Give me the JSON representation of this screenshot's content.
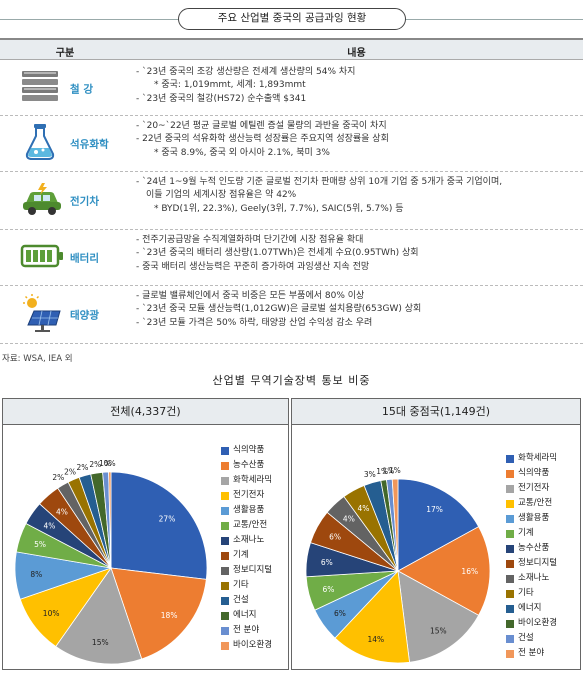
{
  "header": {
    "title": "주요 산업별 중국의 공급과잉 현황"
  },
  "table": {
    "col_category": "구분",
    "col_content": "내용",
    "rows": [
      {
        "category": "철 강",
        "icon": "steel-icon",
        "lines": [
          {
            "t": "b",
            "text": "- `23년 중국의 조강 생산량은 전세계 생산량의 54% 차지"
          },
          {
            "t": "sub",
            "text": "* 중국: 1,019mmt, 세계: 1,893mmt"
          },
          {
            "t": "b",
            "text": "- `23년 중국의 철강(HS72) 순수출액 $341"
          }
        ]
      },
      {
        "category": "석유화학",
        "icon": "flask-icon",
        "lines": [
          {
            "t": "b",
            "text": "- `20~`22년 평균 글로벌 에틸렌 증설 물량의 과반을 중국이 차지"
          },
          {
            "t": "b",
            "text": "- 22년 중국의 석유화학 생산능력 성장률은 주요지역 성장률을 상회"
          },
          {
            "t": "sub",
            "text": "* 중국 8.9%, 중국 외 아시아 2.1%, 북미 3%"
          }
        ]
      },
      {
        "category": "전기차",
        "icon": "electric-car-icon",
        "lines": [
          {
            "t": "b",
            "text": "- `24년 1~9월 누적 인도량 기준 글로벌 전기차 판매량 상위 10개 기업 중 5개가 중국 기업이며,"
          },
          {
            "t": "cont",
            "text": "이들 기업의 세계시장 점유율은 약 42%"
          },
          {
            "t": "sub",
            "text": "* BYD(1위, 22.3%), Geely(3위, 7.7%), SAIC(5위, 5.7%) 등"
          }
        ]
      },
      {
        "category": "배터리",
        "icon": "battery-icon",
        "lines": [
          {
            "t": "b",
            "text": "- 전주기공급망을 수직계열화하며 단기간에 시장 점유율 확대"
          },
          {
            "t": "b",
            "text": "- `23년 중국의 배터리 생산량(1.07TWh)은 전세계 수요(0.95TWh) 상회"
          },
          {
            "t": "b",
            "text": "- 중국 배터리 생산능력은 꾸준히 증가하여 과잉생산 지속 전망"
          }
        ]
      },
      {
        "category": "태양광",
        "icon": "solar-panel-icon",
        "lines": [
          {
            "t": "b",
            "text": "- 글로벌 밸류체인에서 중국 비중은 모든 부품에서 80% 이상"
          },
          {
            "t": "b",
            "text": "- `23년 중국 모듈 생산능력(1,012GW)은 글로벌 설치용량(653GW) 상회"
          },
          {
            "t": "b",
            "text": "- `23년 모듈 가격은 50% 하락, 태양광 산업 수익성 감소 우려"
          }
        ]
      }
    ]
  },
  "source": "자료: WSA, IEA 외",
  "chart_heading": "산업별 무역기술장벽 통보 비중",
  "chart_data": [
    {
      "type": "pie",
      "title": "전체(4,337건)",
      "slices": [
        {
          "name": "식의약품",
          "value": 27,
          "label": "27%",
          "color": "#2f5fb3"
        },
        {
          "name": "농수산품",
          "value": 18,
          "label": "18%",
          "color": "#ed7d31"
        },
        {
          "name": "화학세라믹",
          "value": 15,
          "label": "15%",
          "color": "#a5a5a5"
        },
        {
          "name": "전기전자",
          "value": 10,
          "label": "10%",
          "color": "#ffc000"
        },
        {
          "name": "생활용품",
          "value": 8,
          "label": "8%",
          "color": "#5b9bd5"
        },
        {
          "name": "교통/안전",
          "value": 5,
          "label": "5%",
          "color": "#70ad47"
        },
        {
          "name": "소재나노",
          "value": 4,
          "label": "4%",
          "color": "#264478"
        },
        {
          "name": "기계",
          "value": 4,
          "label": "4%",
          "color": "#9e480e"
        },
        {
          "name": "정보디지털",
          "value": 2,
          "label": "2%",
          "color": "#636363"
        },
        {
          "name": "기타",
          "value": 2,
          "label": "2%",
          "color": "#997300"
        },
        {
          "name": "건설",
          "value": 2,
          "label": "2%",
          "color": "#255e91"
        },
        {
          "name": "에너지",
          "value": 2,
          "label": "2%",
          "color": "#43682b"
        },
        {
          "name": "전 분야",
          "value": 1,
          "label": "1%",
          "color": "#698ed0"
        },
        {
          "name": "바이오환경",
          "value": 0.4,
          "label": "0%",
          "color": "#f1975a"
        }
      ]
    },
    {
      "type": "pie",
      "title": "15대 중점국(1,149건)",
      "slices": [
        {
          "name": "화학세라믹",
          "value": 17,
          "label": "17%",
          "color": "#2f5fb3"
        },
        {
          "name": "식의약품",
          "value": 16,
          "label": "16%",
          "color": "#ed7d31"
        },
        {
          "name": "전기전자",
          "value": 15,
          "label": "15%",
          "color": "#a5a5a5"
        },
        {
          "name": "교통/안전",
          "value": 14,
          "label": "14%",
          "color": "#ffc000"
        },
        {
          "name": "생활용품",
          "value": 6,
          "label": "6%",
          "color": "#5b9bd5"
        },
        {
          "name": "기계",
          "value": 6,
          "label": "6%",
          "color": "#70ad47"
        },
        {
          "name": "농수산품",
          "value": 6,
          "label": "6%",
          "color": "#264478"
        },
        {
          "name": "정보디지털",
          "value": 6,
          "label": "6%",
          "color": "#9e480e"
        },
        {
          "name": "소재나노",
          "value": 4,
          "label": "4%",
          "color": "#636363"
        },
        {
          "name": "기타",
          "value": 4,
          "label": "4%",
          "color": "#997300"
        },
        {
          "name": "에너지",
          "value": 3,
          "label": "3%",
          "color": "#255e91"
        },
        {
          "name": "바이오환경",
          "value": 1,
          "label": "1%",
          "color": "#43682b"
        },
        {
          "name": "건설",
          "value": 1,
          "label": "1%",
          "color": "#698ed0"
        },
        {
          "name": "전 분야",
          "value": 1,
          "label": "1%",
          "color": "#f1975a"
        }
      ]
    }
  ]
}
